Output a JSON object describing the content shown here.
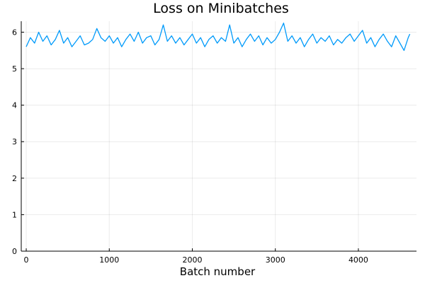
{
  "chart_data": {
    "type": "line",
    "title": "Loss on Minibatches",
    "xlabel": "Batch number",
    "ylabel": "",
    "xlim": [
      -60,
      4700
    ],
    "ylim": [
      0,
      6.3
    ],
    "x_ticks": [
      0,
      1000,
      2000,
      3000,
      4000
    ],
    "y_ticks": [
      0,
      1,
      2,
      3,
      4,
      5,
      6
    ],
    "grid": true,
    "legend": "none",
    "series": [
      {
        "color": "#009AFA",
        "x": [
          0,
          50,
          100,
          150,
          200,
          250,
          300,
          350,
          400,
          450,
          500,
          550,
          600,
          650,
          700,
          750,
          800,
          850,
          900,
          950,
          1000,
          1050,
          1100,
          1150,
          1200,
          1250,
          1300,
          1350,
          1400,
          1450,
          1500,
          1550,
          1600,
          1650,
          1700,
          1750,
          1800,
          1850,
          1900,
          1950,
          2000,
          2050,
          2100,
          2150,
          2200,
          2250,
          2300,
          2350,
          2400,
          2450,
          2500,
          2550,
          2600,
          2650,
          2700,
          2750,
          2800,
          2850,
          2900,
          2950,
          3000,
          3050,
          3100,
          3150,
          3200,
          3250,
          3300,
          3350,
          3400,
          3450,
          3500,
          3550,
          3600,
          3650,
          3700,
          3750,
          3800,
          3850,
          3900,
          3950,
          4000,
          4050,
          4100,
          4150,
          4200,
          4250,
          4300,
          4350,
          4400,
          4450,
          4500,
          4550,
          4600,
          4620
        ],
        "y": [
          5.6,
          5.85,
          5.7,
          6.0,
          5.75,
          5.9,
          5.65,
          5.8,
          6.05,
          5.7,
          5.85,
          5.6,
          5.75,
          5.9,
          5.65,
          5.7,
          5.8,
          6.1,
          5.85,
          5.75,
          5.9,
          5.7,
          5.85,
          5.6,
          5.8,
          5.95,
          5.75,
          6.0,
          5.7,
          5.85,
          5.9,
          5.65,
          5.8,
          6.2,
          5.75,
          5.9,
          5.7,
          5.85,
          5.65,
          5.8,
          5.95,
          5.7,
          5.85,
          5.6,
          5.8,
          5.9,
          5.7,
          5.85,
          5.75,
          6.2,
          5.7,
          5.85,
          5.6,
          5.8,
          5.95,
          5.75,
          5.9,
          5.65,
          5.85,
          5.7,
          5.8,
          6.0,
          6.25,
          5.75,
          5.9,
          5.7,
          5.85,
          5.6,
          5.8,
          5.95,
          5.7,
          5.85,
          5.75,
          5.9,
          5.65,
          5.8,
          5.7,
          5.85,
          5.95,
          5.75,
          5.9,
          6.05,
          5.7,
          5.85,
          5.6,
          5.8,
          5.95,
          5.75,
          5.6,
          5.9,
          5.7,
          5.5,
          5.85,
          5.95
        ]
      }
    ]
  }
}
